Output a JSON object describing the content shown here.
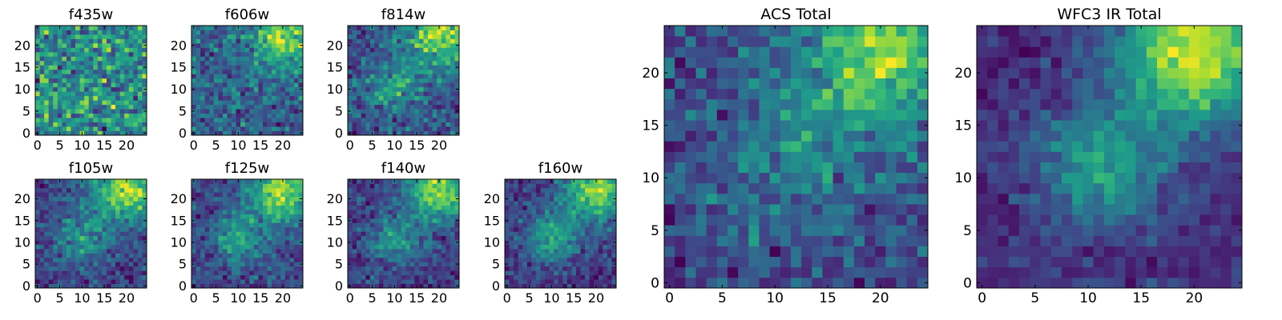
{
  "chart_data": [
    {
      "type": "heatmap",
      "title": "f435w",
      "size": 25,
      "seed": 11,
      "bias": [],
      "noise": 0.95,
      "xticks": [
        0,
        5,
        10,
        15,
        20
      ],
      "yticks": [
        0,
        5,
        10,
        15,
        20
      ],
      "xlim": [
        0,
        25
      ],
      "ylim": [
        0,
        25
      ],
      "colormap": "viridis"
    },
    {
      "type": "heatmap",
      "title": "f606w",
      "size": 25,
      "seed": 23,
      "bias": [
        {
          "x": 20,
          "y": 22,
          "w": 0.55,
          "r": 5
        }
      ],
      "noise": 0.8,
      "xticks": [
        0,
        5,
        10,
        15,
        20
      ],
      "yticks": [
        0,
        5,
        10,
        15,
        20
      ],
      "xlim": [
        0,
        25
      ],
      "ylim": [
        0,
        25
      ],
      "colormap": "viridis"
    },
    {
      "type": "heatmap",
      "title": "f814w",
      "size": 25,
      "seed": 37,
      "bias": [
        {
          "x": 20,
          "y": 22,
          "w": 0.6,
          "r": 5
        },
        {
          "x": 10,
          "y": 11,
          "w": 0.3,
          "r": 4
        }
      ],
      "noise": 0.75,
      "xticks": [
        0,
        5,
        10,
        15,
        20
      ],
      "yticks": [
        0,
        5,
        10,
        15,
        20
      ],
      "xlim": [
        0,
        25
      ],
      "ylim": [
        0,
        25
      ],
      "colormap": "viridis"
    },
    {
      "type": "heatmap",
      "title": "f105w",
      "size": 25,
      "seed": 41,
      "bias": [
        {
          "x": 20,
          "y": 22,
          "w": 0.65,
          "r": 5
        },
        {
          "x": 10,
          "y": 11,
          "w": 0.3,
          "r": 4
        }
      ],
      "noise": 0.55,
      "xticks": [
        0,
        5,
        10,
        15,
        20
      ],
      "yticks": [
        0,
        5,
        10,
        15,
        20
      ],
      "xlim": [
        0,
        25
      ],
      "ylim": [
        0,
        25
      ],
      "colormap": "viridis"
    },
    {
      "type": "heatmap",
      "title": "f125w",
      "size": 25,
      "seed": 53,
      "bias": [
        {
          "x": 20,
          "y": 22,
          "w": 0.6,
          "r": 5
        },
        {
          "x": 10,
          "y": 11,
          "w": 0.35,
          "r": 4
        }
      ],
      "noise": 0.55,
      "xticks": [
        0,
        5,
        10,
        15,
        20
      ],
      "yticks": [
        0,
        5,
        10,
        15,
        20
      ],
      "xlim": [
        0,
        25
      ],
      "ylim": [
        0,
        25
      ],
      "colormap": "viridis"
    },
    {
      "type": "heatmap",
      "title": "f140w",
      "size": 25,
      "seed": 67,
      "bias": [
        {
          "x": 20,
          "y": 22,
          "w": 0.65,
          "r": 5
        },
        {
          "x": 10,
          "y": 11,
          "w": 0.35,
          "r": 4
        }
      ],
      "noise": 0.55,
      "xticks": [
        0,
        5,
        10,
        15,
        20
      ],
      "yticks": [
        0,
        5,
        10,
        15,
        20
      ],
      "xlim": [
        0,
        25
      ],
      "ylim": [
        0,
        25
      ],
      "colormap": "viridis"
    },
    {
      "type": "heatmap",
      "title": "f160w",
      "size": 25,
      "seed": 79,
      "bias": [
        {
          "x": 20,
          "y": 22,
          "w": 0.65,
          "r": 5
        },
        {
          "x": 10,
          "y": 11,
          "w": 0.4,
          "r": 4
        }
      ],
      "noise": 0.5,
      "xticks": [
        0,
        5,
        10,
        15,
        20
      ],
      "yticks": [
        0,
        5,
        10,
        15,
        20
      ],
      "xlim": [
        0,
        25
      ],
      "ylim": [
        0,
        25
      ],
      "colormap": "viridis"
    },
    {
      "type": "heatmap",
      "title": "ACS Total",
      "size": 25,
      "seed": 91,
      "bias": [
        {
          "x": 20,
          "y": 22,
          "w": 0.55,
          "r": 5
        },
        {
          "x": 12,
          "y": 12,
          "w": 0.2,
          "r": 5
        }
      ],
      "noise": 0.6,
      "xticks": [
        0,
        5,
        10,
        15,
        20
      ],
      "yticks": [
        0,
        5,
        10,
        15,
        20
      ],
      "xlim": [
        0,
        25
      ],
      "ylim": [
        0,
        25
      ],
      "colormap": "viridis"
    },
    {
      "type": "heatmap",
      "title": "WFC3 IR Total",
      "size": 25,
      "seed": 103,
      "bias": [
        {
          "x": 20,
          "y": 22,
          "w": 0.75,
          "r": 5
        },
        {
          "x": 11,
          "y": 11,
          "w": 0.4,
          "r": 4
        }
      ],
      "noise": 0.35,
      "xticks": [
        0,
        5,
        10,
        15,
        20
      ],
      "yticks": [
        0,
        5,
        10,
        15,
        20
      ],
      "xlim": [
        0,
        25
      ],
      "ylim": [
        0,
        25
      ],
      "colormap": "viridis"
    }
  ]
}
